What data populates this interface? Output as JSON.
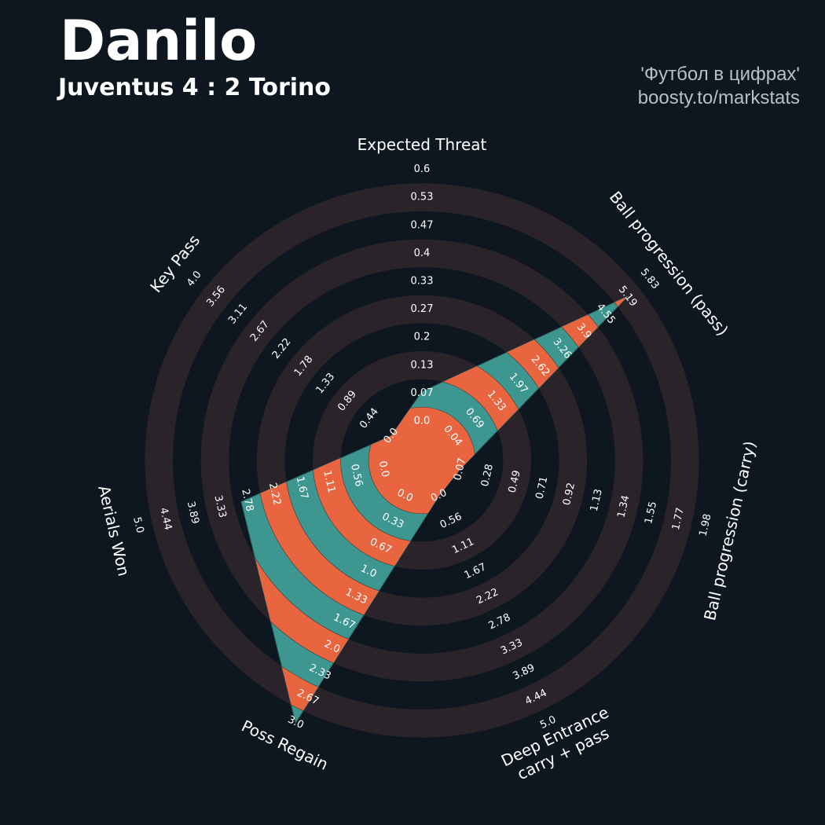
{
  "title": "Danilo",
  "subtitle": "Juventus 4 : 2 Torino",
  "credit": {
    "line1": "'Футбол в цифрах'",
    "line2": "boosty.to/markstats"
  },
  "colors": {
    "background": "#0e1720",
    "ring": "#2a2329",
    "fill_primary": "#3d968f",
    "fill_secondary": "#e8653f",
    "text": "#ffffff"
  },
  "chart_data": {
    "type": "radar",
    "grid": true,
    "parameters": [
      {
        "name": "Expected Threat",
        "value": 0.07,
        "min": 0.0,
        "max": 0.6,
        "ticks": [
          "0.0",
          "0.07",
          "0.13",
          "0.2",
          "0.27",
          "0.33",
          "0.4",
          "0.47",
          "0.53",
          "0.6"
        ]
      },
      {
        "name": "Ball progression (pass)",
        "value": 5.19,
        "min": 0.04,
        "max": 5.83,
        "ticks": [
          "0.04",
          "0.69",
          "1.33",
          "1.97",
          "2.62",
          "3.26",
          "3.9",
          "4.55",
          "5.19",
          "5.83"
        ]
      },
      {
        "name": "Ball progression (carry)",
        "value": 0.0,
        "min": 0.07,
        "max": 1.98,
        "ticks": [
          "0.07",
          "0.28",
          "0.49",
          "0.71",
          "0.92",
          "1.13",
          "1.34",
          "1.55",
          "1.77",
          "1.98"
        ]
      },
      {
        "name": "Deep Entrance\ncarry + pass",
        "value": 0.0,
        "min": 0.0,
        "max": 5.0,
        "ticks": [
          "0.0",
          "0.56",
          "1.11",
          "1.67",
          "2.22",
          "2.78",
          "3.33",
          "3.89",
          "4.44",
          "5.0"
        ]
      },
      {
        "name": "Poss Regain",
        "value": 3.0,
        "min": 0.0,
        "max": 3.0,
        "ticks": [
          "0.0",
          "0.33",
          "0.67",
          "1.0",
          "1.33",
          "1.67",
          "2.0",
          "2.33",
          "2.67",
          "3.0"
        ]
      },
      {
        "name": "Aerials Won",
        "value": 2.9,
        "min": 0.0,
        "max": 5.0,
        "ticks": [
          "0.0",
          "0.56",
          "1.11",
          "1.67",
          "2.22",
          "2.78",
          "3.33",
          "3.89",
          "4.44",
          "5.0"
        ]
      },
      {
        "name": "Key Pass",
        "value": 0.0,
        "min": 0.0,
        "max": 4.0,
        "ticks": [
          "0.0",
          "0.44",
          "0.89",
          "1.33",
          "1.78",
          "2.22",
          "2.67",
          "3.11",
          "3.56",
          "4.0"
        ]
      }
    ]
  }
}
